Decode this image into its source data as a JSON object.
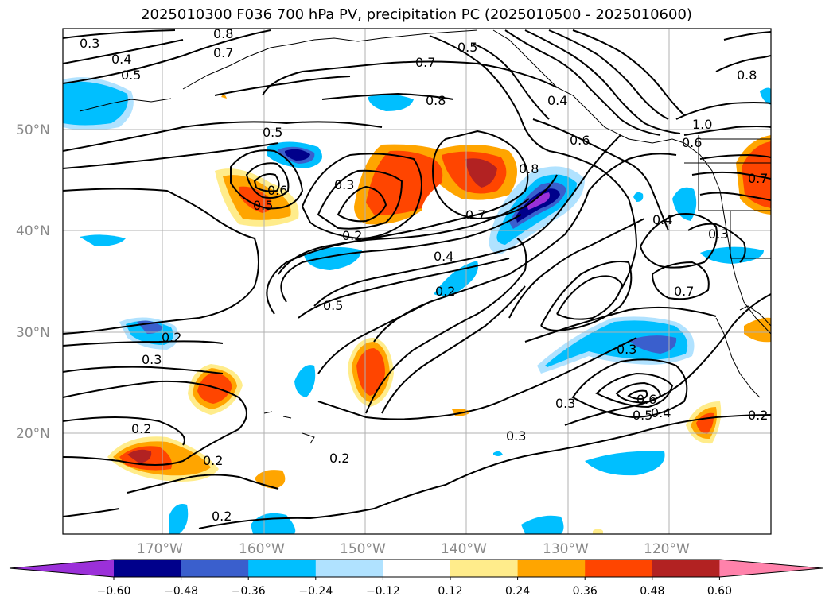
{
  "title": "2025010300 F036 700 hPa PV, precipitation PC (2025010500 - 2025010600)",
  "lon_labels": [
    "170°W",
    "160°W",
    "150°W",
    "140°W",
    "130°W",
    "120°W"
  ],
  "lat_labels": [
    "50°N",
    "40°N",
    "30°N",
    "20°N"
  ],
  "contour_labels": [
    "0.3",
    "0.8",
    "0.7",
    "0.4",
    "0.5",
    "0.7",
    "0.8",
    "0.5",
    "0.4",
    "0.8",
    "1.0",
    "0.5",
    "0.6",
    "0.6",
    "0.8",
    "0.3",
    "0.6",
    "0.5",
    "0.2",
    "0.7",
    "0.4",
    "0.2",
    "0.5",
    "0.7",
    "0.4",
    "0.3",
    "0.7",
    "0.2",
    "0.3",
    "0.3",
    "0.3",
    "0.6",
    "0.5",
    "0.4",
    "0.2",
    "0.2",
    "0.2",
    "0.3",
    "0.2",
    "0.2"
  ],
  "colorbar": {
    "ticks": [
      "−0.60",
      "−0.48",
      "−0.36",
      "−0.24",
      "−0.12",
      "0.12",
      "0.24",
      "0.36",
      "0.48",
      "0.60"
    ],
    "colors": [
      "#9b30d9",
      "#00008b",
      "#3a5fcd",
      "#00bfff",
      "#b0e2ff",
      "#ffffff",
      "#ffec8b",
      "#ffa500",
      "#ff4500",
      "#b22222",
      "#ff82ab"
    ]
  },
  "colors": {
    "contour": "#000000",
    "grid": "#b0b0b0"
  }
}
